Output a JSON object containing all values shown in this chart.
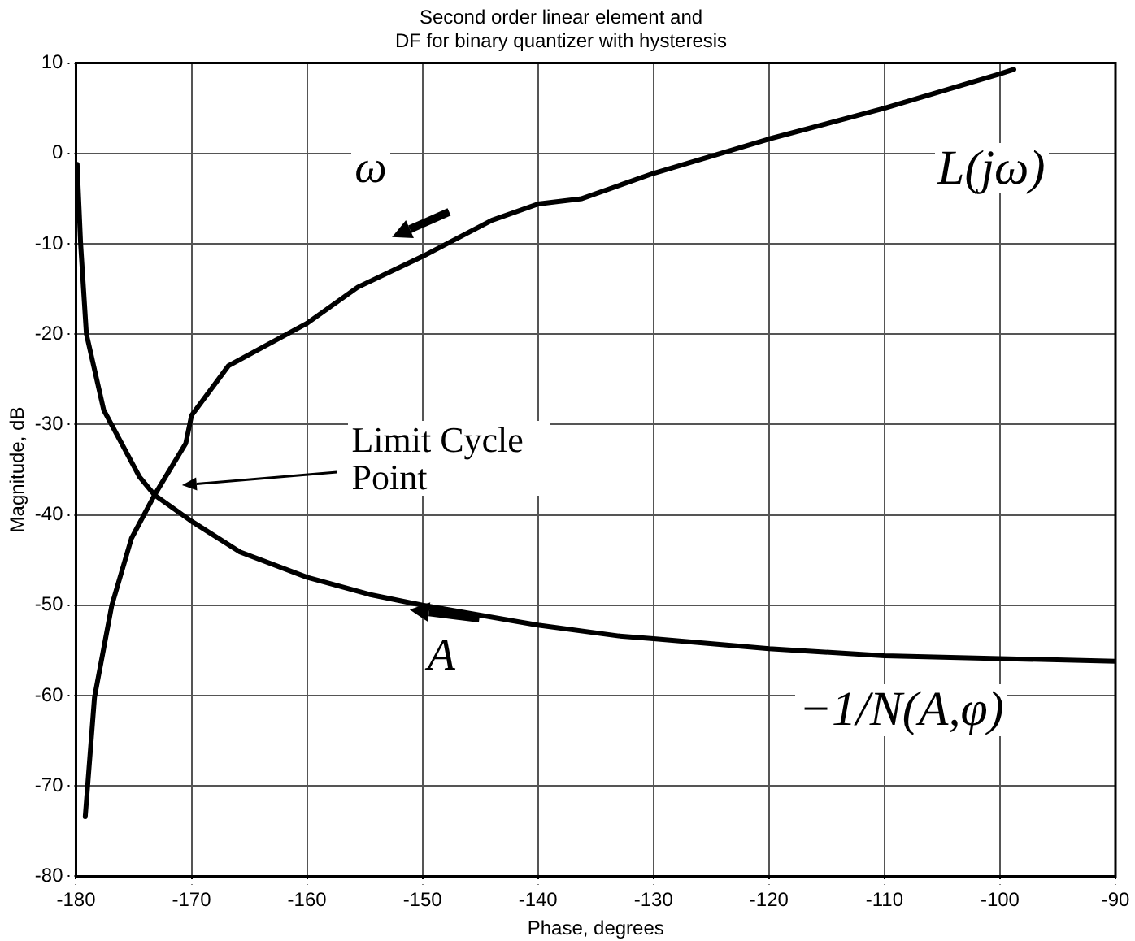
{
  "chart_data": {
    "type": "line",
    "title": "Second order linear element and\nDF for binary quantizer with hysteresis",
    "xlabel": "Phase, degrees",
    "ylabel": "Magnitude, dB",
    "xlim": [
      -180,
      -90
    ],
    "xticks": [
      -180,
      -170,
      -160,
      -150,
      -140,
      -130,
      -120,
      -110,
      -100,
      -90
    ],
    "ylim": [
      -80,
      10
    ],
    "yticks": [
      -80,
      -70,
      -60,
      -50,
      -40,
      -30,
      -20,
      -10,
      0,
      10
    ],
    "grid": true,
    "legend": false,
    "marker": "none",
    "line_style": "solid",
    "series": [
      {
        "name": "L(jω)",
        "color": "#000000",
        "x": [
          -179.2,
          -178.4,
          -176.9,
          -175.2,
          -173.2,
          -170.5,
          -170,
          -166.8,
          -160,
          -155.6,
          -150,
          -144,
          -140,
          -136.2,
          -130,
          -120,
          -110,
          -100,
          -98.8
        ],
        "values": [
          -73.4,
          -60.2,
          -50,
          -42.6,
          -37.8,
          -32.1,
          -29,
          -23.5,
          -18.8,
          -14.8,
          -11.4,
          -7.4,
          -5.6,
          -5,
          -2.2,
          1.6,
          5,
          8.8,
          9.3
        ]
      },
      {
        "name": "−1/N(A,φ)",
        "color": "#000000",
        "x": [
          -179.9,
          -179.6,
          -179.1,
          -177.6,
          -174.5,
          -173.2,
          -170,
          -165.8,
          -160,
          -154.6,
          -150,
          -140,
          -133,
          -130,
          -120,
          -110,
          -100,
          -90
        ],
        "values": [
          -1.2,
          -10,
          -20,
          -28.4,
          -35.8,
          -37.8,
          -40.7,
          -44.1,
          -46.9,
          -48.8,
          -50,
          -52.2,
          -53.4,
          -53.7,
          -54.8,
          -55.6,
          -55.9,
          -56.2
        ]
      }
    ],
    "annotations": [
      "ω",
      "Limit Cycle Point",
      "A"
    ]
  }
}
